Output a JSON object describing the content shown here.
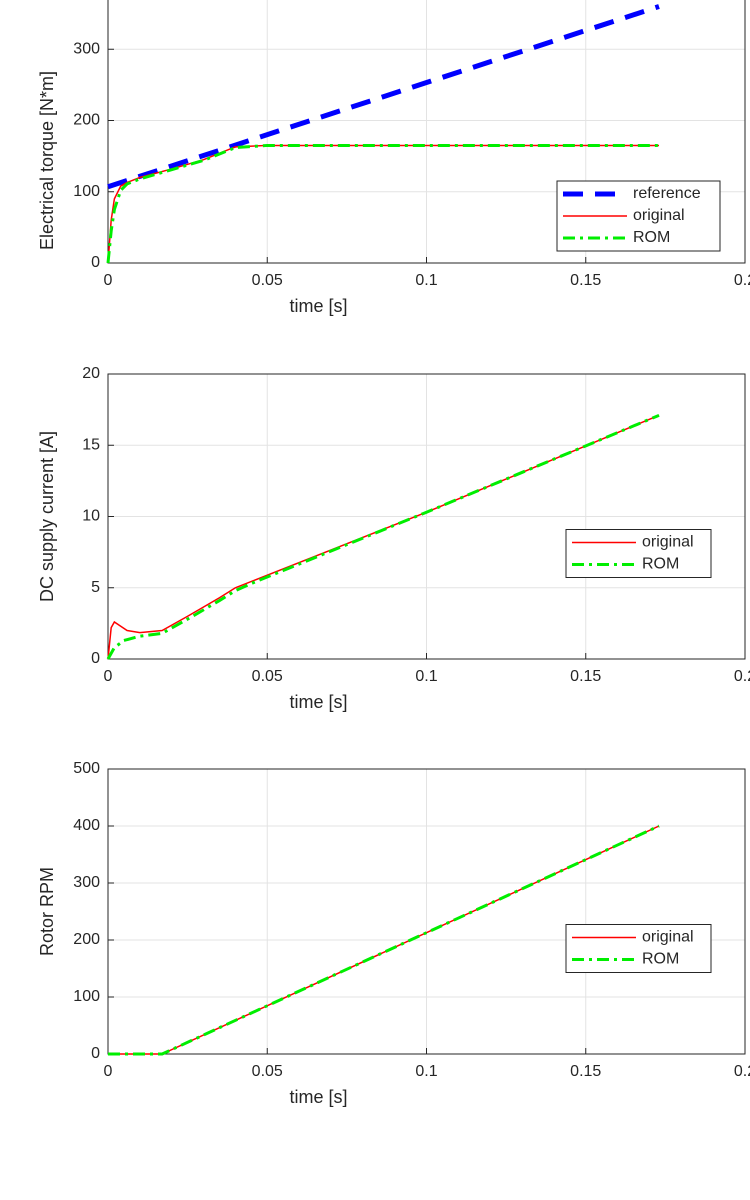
{
  "chart_data": [
    {
      "type": "line",
      "ylabel": "Electrical torque [N*m]",
      "xlabel": "time [s]",
      "xlim": [
        0,
        0.2
      ],
      "xticks": [
        0,
        0.05,
        0.1,
        0.15,
        0.2
      ],
      "ylim": [
        0,
        400
      ],
      "yticks": [
        0,
        100,
        200,
        300
      ],
      "grid": true,
      "legend": "southeast",
      "series": [
        {
          "name": "reference",
          "color": "#0000ff",
          "style": "dashed",
          "x": [
            0,
            0.173
          ],
          "values": [
            107,
            360
          ]
        },
        {
          "name": "original",
          "color": "#ff0000",
          "style": "solid",
          "x": [
            0,
            0.001,
            0.002,
            0.004,
            0.006,
            0.01,
            0.02,
            0.03,
            0.04,
            0.05,
            0.1,
            0.15,
            0.173
          ],
          "values": [
            0,
            60,
            90,
            108,
            113,
            120,
            132,
            145,
            163,
            165,
            165,
            165,
            165
          ]
        },
        {
          "name": "ROM",
          "color": "#00ee00",
          "style": "dashdot",
          "x": [
            0,
            0.001,
            0.002,
            0.004,
            0.006,
            0.01,
            0.02,
            0.03,
            0.04,
            0.05,
            0.1,
            0.15,
            0.173
          ],
          "values": [
            0,
            45,
            75,
            102,
            111,
            118,
            131,
            144,
            162,
            165,
            165,
            165,
            165
          ]
        }
      ]
    },
    {
      "type": "line",
      "ylabel": "DC supply current [A]",
      "xlabel": "time [s]",
      "xlim": [
        0,
        0.2
      ],
      "xticks": [
        0,
        0.05,
        0.1,
        0.15,
        0.2
      ],
      "ylim": [
        0,
        20
      ],
      "yticks": [
        0,
        5,
        10,
        15,
        20
      ],
      "grid": true,
      "legend": "east",
      "series": [
        {
          "name": "original",
          "color": "#ff0000",
          "style": "solid",
          "x": [
            0,
            0.001,
            0.002,
            0.004,
            0.006,
            0.01,
            0.017,
            0.025,
            0.035,
            0.04,
            0.1,
            0.173
          ],
          "values": [
            0,
            2.2,
            2.6,
            2.3,
            2.0,
            1.85,
            2.0,
            3.0,
            4.3,
            5.0,
            10.3,
            17.1
          ]
        },
        {
          "name": "ROM",
          "color": "#00ee00",
          "style": "dashdot",
          "x": [
            0,
            0.002,
            0.005,
            0.01,
            0.017,
            0.025,
            0.035,
            0.04,
            0.045,
            0.1,
            0.173
          ],
          "values": [
            0,
            0.8,
            1.3,
            1.6,
            1.8,
            2.8,
            4.1,
            4.8,
            5.3,
            10.3,
            17.1
          ]
        }
      ]
    },
    {
      "type": "line",
      "ylabel": "Rotor RPM",
      "xlabel": "time [s]",
      "xlim": [
        0,
        0.2
      ],
      "xticks": [
        0,
        0.05,
        0.1,
        0.15,
        0.2
      ],
      "ylim": [
        0,
        500
      ],
      "yticks": [
        0,
        100,
        200,
        300,
        400,
        500
      ],
      "grid": true,
      "legend": "east",
      "series": [
        {
          "name": "original",
          "color": "#ff0000",
          "style": "solid",
          "x": [
            0,
            0.017,
            0.173
          ],
          "values": [
            0,
            0,
            400
          ]
        },
        {
          "name": "ROM",
          "color": "#00ee00",
          "style": "dashdot",
          "x": [
            0,
            0.017,
            0.173
          ],
          "values": [
            0,
            0,
            400
          ]
        }
      ]
    }
  ]
}
